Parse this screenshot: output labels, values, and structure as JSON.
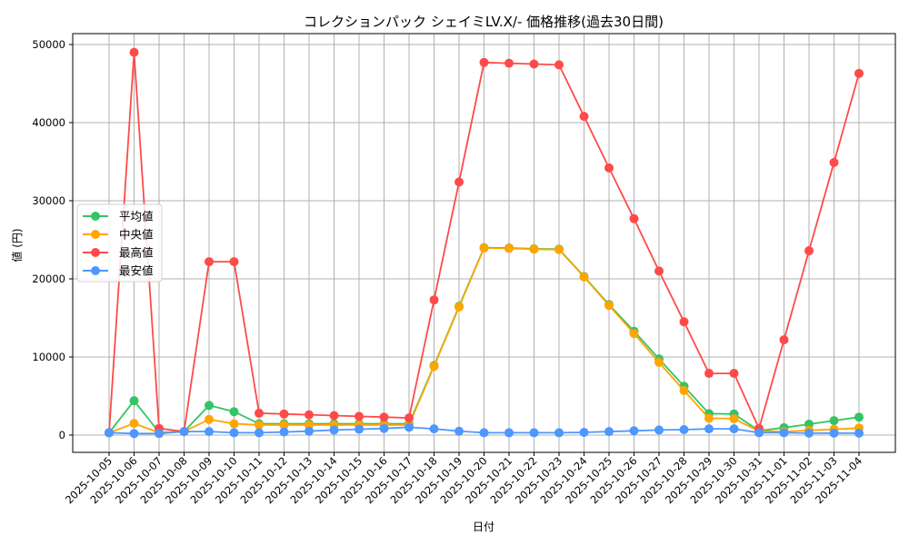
{
  "chart_data": {
    "type": "line",
    "title": "コレクションパック シェイミLV.X/- 価格推移(過去30日間)",
    "xlabel": "日付",
    "ylabel": "値 (円)",
    "ylim": [
      -2200,
      51700
    ],
    "yticks": [
      0,
      10000,
      20000,
      30000,
      40000,
      50000
    ],
    "grid": true,
    "legend_position": "center left",
    "x": [
      "2025-10-05",
      "2025-10-06",
      "2025-10-07",
      "2025-10-08",
      "2025-10-09",
      "2025-10-10",
      "2025-10-11",
      "2025-10-12",
      "2025-10-13",
      "2025-10-14",
      "2025-10-15",
      "2025-10-16",
      "2025-10-17",
      "2025-10-18",
      "2025-10-19",
      "2025-10-20",
      "2025-10-21",
      "2025-10-22",
      "2025-10-23",
      "2025-10-24",
      "2025-10-25",
      "2025-10-26",
      "2025-10-27",
      "2025-10-28",
      "2025-10-29",
      "2025-10-30",
      "2025-10-31",
      "2025-11-01",
      "2025-11-02",
      "2025-11-03",
      "2025-11-04"
    ],
    "series": [
      {
        "name": "平均値",
        "color": "#33c466",
        "values": [
          300,
          4400,
          350,
          450,
          3800,
          3000,
          1450,
          1450,
          1450,
          1450,
          1450,
          1450,
          1450,
          8900,
          16500,
          24000,
          23950,
          23850,
          23800,
          20300,
          16700,
          13300,
          9750,
          6250,
          2750,
          2700,
          550,
          950,
          1400,
          1850,
          2300
        ]
      },
      {
        "name": "中央値",
        "color": "#ffa500",
        "values": [
          300,
          1500,
          300,
          450,
          2000,
          1450,
          1300,
          1300,
          1300,
          1300,
          1300,
          1300,
          1300,
          8800,
          16400,
          23950,
          23900,
          23800,
          23750,
          20250,
          16600,
          13000,
          9300,
          5700,
          2150,
          2100,
          500,
          450,
          600,
          750,
          900
        ]
      },
      {
        "name": "最高値",
        "color": "#ff4a4a",
        "values": [
          300,
          49000,
          850,
          450,
          22200,
          22200,
          2800,
          2700,
          2600,
          2500,
          2400,
          2300,
          2200,
          17300,
          32400,
          47700,
          47600,
          47500,
          47400,
          40800,
          34200,
          27700,
          21000,
          14500,
          7900,
          7900,
          850,
          12200,
          23600,
          34900,
          46300
        ]
      },
      {
        "name": "最安値",
        "color": "#4d97ff",
        "values": [
          300,
          200,
          200,
          450,
          450,
          300,
          300,
          400,
          500,
          650,
          750,
          850,
          1000,
          800,
          500,
          300,
          300,
          300,
          300,
          350,
          450,
          550,
          650,
          700,
          800,
          800,
          300,
          300,
          250,
          250,
          250
        ]
      }
    ]
  }
}
